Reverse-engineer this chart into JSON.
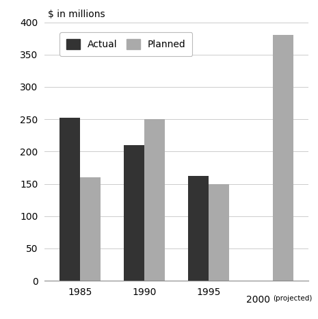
{
  "categories": [
    "1985",
    "1990",
    "1995",
    "2000 (projected)"
  ],
  "actual_values": [
    252,
    210,
    162,
    0
  ],
  "planned_values": [
    160,
    250,
    150,
    380
  ],
  "actual_color": "#333333",
  "planned_color": "#aaaaaa",
  "ylabel": "$ in millions",
  "ylim": [
    0,
    400
  ],
  "yticks": [
    0,
    50,
    100,
    150,
    200,
    250,
    300,
    350,
    400
  ],
  "bar_width": 0.32,
  "legend_labels": [
    "Actual",
    "Planned"
  ],
  "background_color": "#ffffff",
  "grid_color": "#cccccc"
}
